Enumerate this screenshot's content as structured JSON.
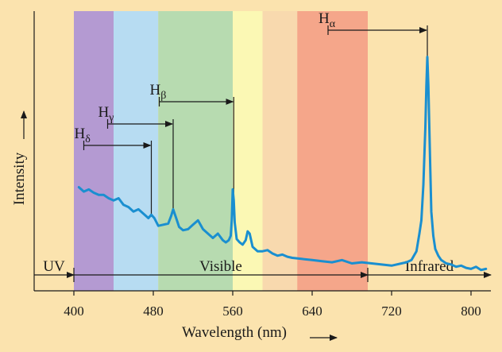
{
  "chart_data": {
    "type": "line",
    "title": "",
    "xlabel": "Wavelength (nm)",
    "ylabel": "Intensity",
    "xlim": [
      360,
      820
    ],
    "xticks": [
      400,
      480,
      560,
      640,
      720,
      800
    ],
    "grid": false,
    "legend": "none",
    "line_color": "#1a8fd0",
    "background": "#fbe3ae",
    "spectrum_bands": [
      {
        "name": "violet",
        "from": 400,
        "to": 440,
        "color": "#b49ad2"
      },
      {
        "name": "blue",
        "from": 440,
        "to": 485,
        "color": "#b7dcf2"
      },
      {
        "name": "green",
        "from": 485,
        "to": 560,
        "color": "#b7dbb0"
      },
      {
        "name": "yellow",
        "from": 560,
        "to": 590,
        "color": "#fbf8b4"
      },
      {
        "name": "orange",
        "from": 590,
        "to": 625,
        "color": "#f8d9ae"
      },
      {
        "name": "red",
        "from": 625,
        "to": 696,
        "color": "#f5a68a"
      }
    ],
    "regions": [
      {
        "label": "UV",
        "from": 360,
        "to": 400
      },
      {
        "label": "Visible",
        "from": 400,
        "to": 696
      },
      {
        "label": "Infrared",
        "from": 696,
        "to": 820
      }
    ],
    "lines": [
      {
        "name": "H",
        "sub": "α",
        "from": 656,
        "to": 756
      },
      {
        "name": "H",
        "sub": "β",
        "from": 486,
        "to": 561
      },
      {
        "name": "H",
        "sub": "γ",
        "from": 434,
        "to": 500
      },
      {
        "name": "H",
        "sub": "δ",
        "from": 410,
        "to": 478
      }
    ],
    "series": [
      {
        "x": [
          405,
          410,
          415,
          420,
          425,
          430,
          435,
          440,
          445,
          450,
          455,
          460,
          465,
          470,
          475,
          478,
          481,
          485,
          490,
          495,
          498,
          500,
          503,
          506,
          510,
          515,
          520,
          525,
          530,
          535,
          540,
          545,
          550,
          553,
          556,
          558,
          559,
          560,
          561,
          562,
          564,
          567,
          570,
          573,
          575,
          577,
          580,
          585,
          590,
          595,
          600,
          605,
          610,
          615,
          620,
          630,
          640,
          650,
          660,
          670,
          680,
          690,
          700,
          710,
          720,
          730,
          735,
          740,
          745,
          748,
          750,
          752,
          754,
          755,
          756,
          757,
          758,
          759,
          760,
          762,
          764,
          767,
          770,
          775,
          780,
          785,
          790,
          795,
          800,
          805,
          810,
          815
        ],
        "y": [
          0.39,
          0.37,
          0.38,
          0.365,
          0.355,
          0.355,
          0.34,
          0.33,
          0.34,
          0.31,
          0.3,
          0.28,
          0.29,
          0.27,
          0.25,
          0.265,
          0.25,
          0.215,
          0.22,
          0.225,
          0.26,
          0.29,
          0.25,
          0.21,
          0.195,
          0.2,
          0.22,
          0.24,
          0.2,
          0.18,
          0.16,
          0.18,
          0.15,
          0.14,
          0.15,
          0.17,
          0.24,
          0.38,
          0.33,
          0.23,
          0.155,
          0.14,
          0.13,
          0.15,
          0.19,
          0.18,
          0.12,
          0.1,
          0.1,
          0.105,
          0.09,
          0.08,
          0.085,
          0.075,
          0.07,
          0.065,
          0.06,
          0.055,
          0.05,
          0.06,
          0.045,
          0.05,
          0.045,
          0.04,
          0.035,
          0.045,
          0.05,
          0.06,
          0.1,
          0.18,
          0.24,
          0.4,
          0.66,
          0.85,
          0.98,
          0.85,
          0.66,
          0.46,
          0.28,
          0.17,
          0.11,
          0.08,
          0.06,
          0.045,
          0.04,
          0.03,
          0.035,
          0.025,
          0.02,
          0.03,
          0.015,
          0.02
        ]
      }
    ]
  }
}
